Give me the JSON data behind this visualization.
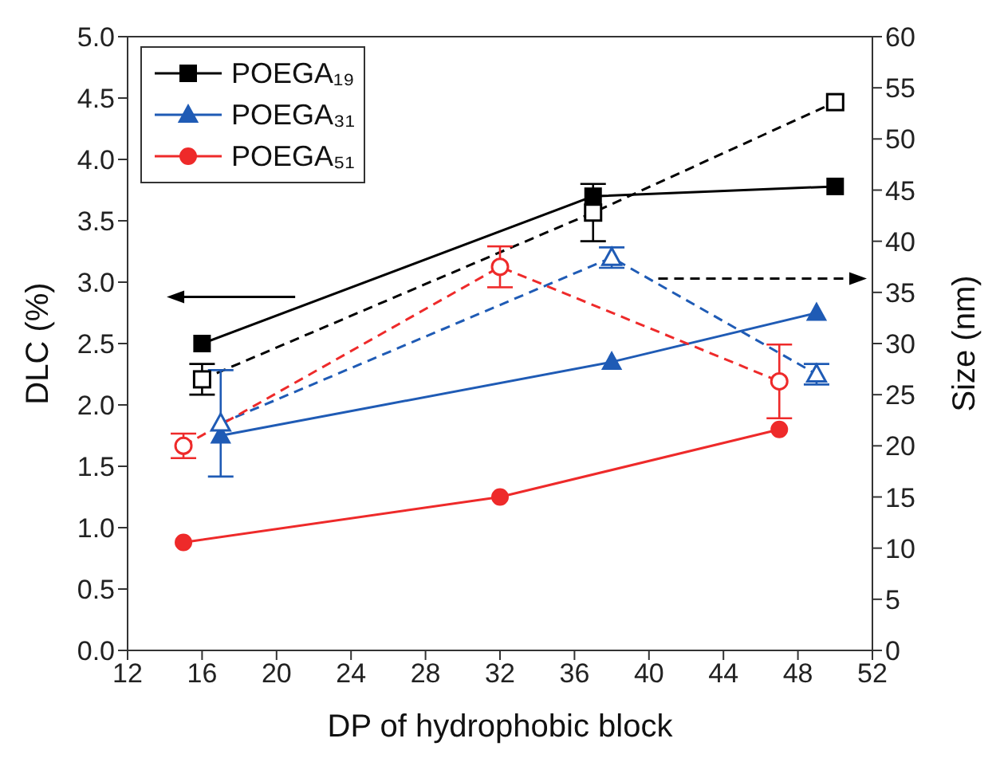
{
  "chart_data": {
    "type": "line",
    "xlabel": "DP of hydrophobic block",
    "ylabel": "DLC (%)",
    "y2label": "Size (nm)",
    "xlim": [
      12,
      52
    ],
    "xticks": [
      12,
      16,
      20,
      24,
      28,
      32,
      36,
      40,
      44,
      48,
      52
    ],
    "ylim": [
      0,
      5
    ],
    "yticks": [
      {
        "value": 0,
        "label": "0.0"
      },
      {
        "value": 0.5,
        "label": "0.5"
      },
      {
        "value": 1,
        "label": "1.0"
      },
      {
        "value": 1.5,
        "label": "1.5"
      },
      {
        "value": 2,
        "label": "2.0"
      },
      {
        "value": 2.5,
        "label": "2.5"
      },
      {
        "value": 3,
        "label": "3.0"
      },
      {
        "value": 3.5,
        "label": "3.5"
      },
      {
        "value": 4,
        "label": "4.0"
      },
      {
        "value": 4.5,
        "label": "4.5"
      },
      {
        "value": 5,
        "label": "5.0"
      }
    ],
    "y2lim": [
      0,
      60
    ],
    "y2ticks": [
      0,
      5,
      10,
      15,
      20,
      25,
      30,
      35,
      40,
      45,
      50,
      55,
      60
    ],
    "legend": "top left",
    "series": [
      {
        "name": "POEGA₁₉",
        "color": "#000000",
        "marker": "square",
        "line_style": "solid",
        "x": [
          16,
          37,
          50
        ],
        "values": [
          2.5,
          3.7,
          3.78
        ]
      },
      {
        "name": "POEGA₃₁",
        "color": "#1f5bb5",
        "marker": "triangle",
        "line_style": "solid",
        "x": [
          17,
          38,
          49
        ],
        "values": [
          1.75,
          2.35,
          2.75
        ]
      },
      {
        "name": "POEGA₅₁",
        "color": "#ee2a2a",
        "marker": "circle",
        "line_style": "solid",
        "x": [
          15,
          32,
          47
        ],
        "values": [
          0.88,
          1.25,
          1.8
        ]
      },
      {
        "color": "#000000",
        "marker": "square",
        "line_style": "dashed",
        "axis": "y2",
        "x": [
          16,
          37,
          50
        ],
        "values": [
          26.5,
          42.8,
          53.6
        ],
        "errors": [
          1.5,
          2.8,
          null
        ]
      },
      {
        "color": "#1f5bb5",
        "marker": "triangle",
        "line_style": "dashed",
        "axis": "y2",
        "x": [
          17,
          38,
          49
        ],
        "values": [
          22.2,
          38.4,
          27
        ],
        "errors": [
          5.2,
          1,
          1
        ]
      },
      {
        "color": "#ee2a2a",
        "marker": "circle",
        "line_style": "dashed",
        "axis": "y2",
        "x": [
          15,
          32,
          47
        ],
        "values": [
          20,
          37.5,
          26.3
        ],
        "errors": [
          1.2,
          2,
          3.6
        ]
      }
    ]
  }
}
